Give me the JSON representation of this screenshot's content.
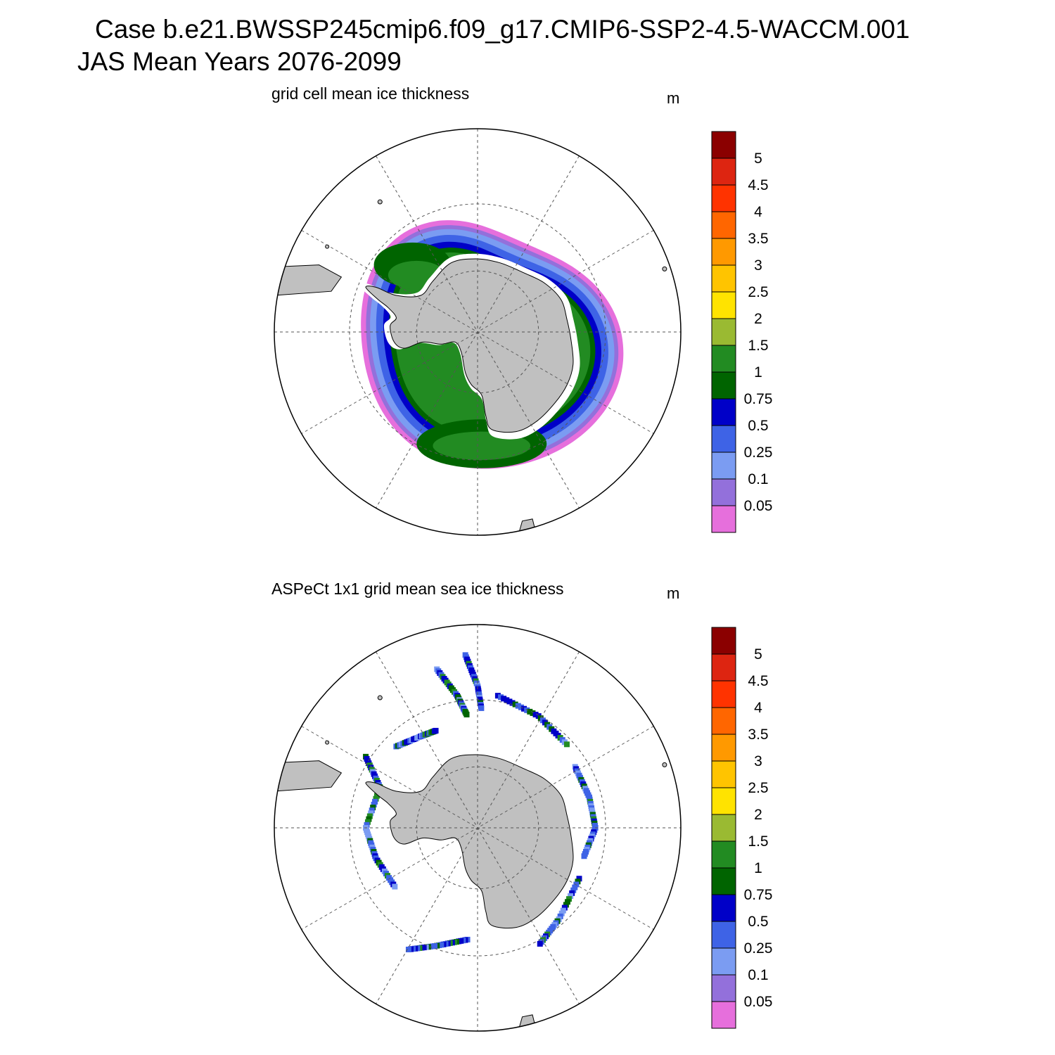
{
  "title": {
    "line1": "Case b.e21.BWSSP245cmip6.f09_g17.CMIP6-SSP2-4.5-WACCM.001",
    "line2": "JAS Mean   Years 2076-2099"
  },
  "panels": [
    {
      "title": "grid cell mean ice thickness",
      "units": "m"
    },
    {
      "title": "ASPeCt 1x1 grid mean sea ice thickness",
      "units": "m"
    }
  ],
  "colorbar": {
    "labels": [
      "0.05",
      "0.1",
      "0.25",
      "0.5",
      "0.75",
      "1",
      "1.5",
      "2",
      "2.5",
      "3",
      "3.5",
      "4",
      "4.5",
      "5"
    ],
    "colors": [
      "#e66fdc",
      "#9370db",
      "#7b9cf2",
      "#3e63e6",
      "#0000c8",
      "#006400",
      "#228b22",
      "#9aba32",
      "#ffe300",
      "#ffc400",
      "#ff9900",
      "#ff6600",
      "#ff3300",
      "#dd2511",
      "#8b0000"
    ]
  },
  "map": {
    "land_color": "#c0c0c0",
    "projection": "South Polar Stereographic",
    "meridian_spacing_deg": 30,
    "latitude_circles_deg": [
      -80,
      -70,
      -60
    ]
  }
}
